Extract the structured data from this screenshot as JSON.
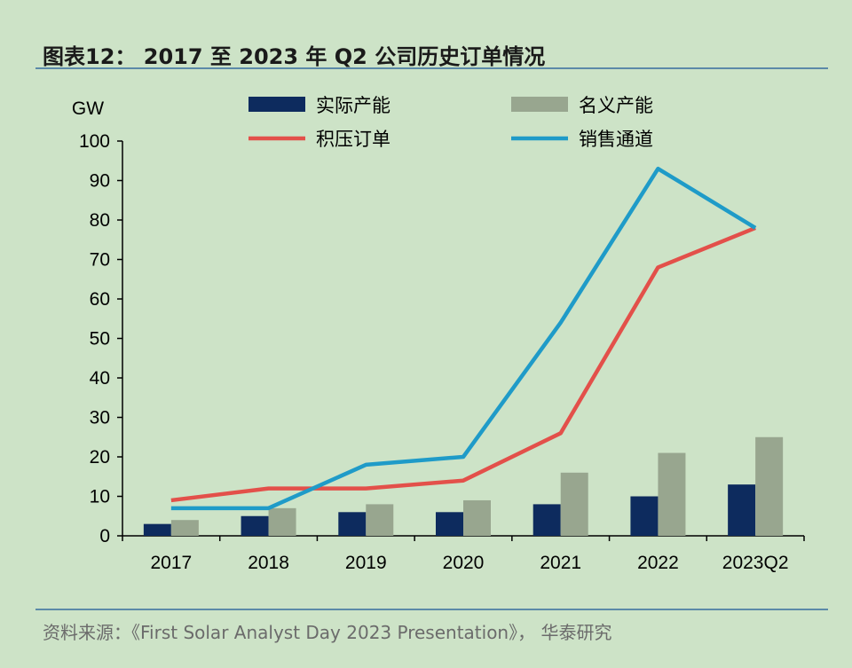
{
  "header": {
    "title": "图表12：  2017 至 2023 年 Q2 公司历史订单情况"
  },
  "footer": {
    "source": "资料来源：《First Solar Analyst Day 2023 Presentation》， 华泰研究"
  },
  "colors": {
    "background": "#cde3c7",
    "actual_capacity": "#0d2b5e",
    "nominal_capacity": "#98a68f",
    "backlog": "#e3504a",
    "channel": "#1f9bc8",
    "rule": "#5c8aa8"
  },
  "chart_data": {
    "type": "bar",
    "title": "",
    "xlabel": "",
    "ylabel": "GW",
    "ylim": [
      0,
      100
    ],
    "yticks": [
      0,
      10,
      20,
      30,
      40,
      50,
      60,
      70,
      80,
      90,
      100
    ],
    "categories": [
      "2017",
      "2018",
      "2019",
      "2020",
      "2021",
      "2022",
      "2023Q2"
    ],
    "grid": false,
    "legend_position": "top",
    "series": [
      {
        "name": "实际产能",
        "type": "bar",
        "color": "#0d2b5e",
        "values": [
          3,
          5,
          6,
          6,
          8,
          10,
          13
        ]
      },
      {
        "name": "名义产能",
        "type": "bar",
        "color": "#98a68f",
        "values": [
          4,
          7,
          8,
          9,
          16,
          21,
          25
        ]
      },
      {
        "name": "积压订单",
        "type": "line",
        "color": "#e3504a",
        "values": [
          9,
          12,
          12,
          14,
          26,
          68,
          78
        ]
      },
      {
        "name": "销售通道",
        "type": "line",
        "color": "#1f9bc8",
        "values": [
          7,
          7,
          18,
          20,
          54,
          93,
          78
        ]
      }
    ]
  }
}
